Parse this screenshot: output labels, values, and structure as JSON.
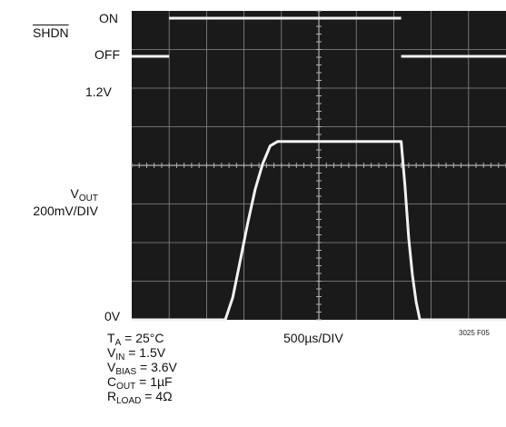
{
  "chart_data": {
    "type": "line",
    "title": "",
    "grid": true,
    "xlabel": "500µs/DIV",
    "x_divisions": 10,
    "y_divisions": 8,
    "x": [
      0,
      0.5,
      0.6,
      0.75,
      1.0,
      1.25,
      1.5,
      1.75,
      2.0,
      2.5,
      3.0,
      3.5,
      4.0,
      4.5,
      5.0
    ],
    "series": [
      {
        "name": "SHDN",
        "units": "logic",
        "labels": {
          "high": "ON",
          "low": "OFF"
        },
        "x": [
          0,
          0.5,
          0.5,
          3.6,
          3.6,
          5.0
        ],
        "values": [
          0,
          0,
          1,
          1,
          0,
          0
        ]
      },
      {
        "name": "VOUT",
        "units": "V",
        "scale": "200mV/DIV",
        "x": [
          0,
          1.25,
          1.35,
          1.45,
          1.55,
          1.65,
          1.75,
          1.85,
          1.95,
          3.6,
          3.65,
          3.7,
          3.75,
          3.8,
          3.85,
          5.0
        ],
        "values": [
          0,
          0,
          0.15,
          0.4,
          0.65,
          0.88,
          1.05,
          1.17,
          1.2,
          1.2,
          0.9,
          0.55,
          0.3,
          0.12,
          0,
          0
        ],
        "level_labels": {
          "high": "1.2V",
          "low": "0V"
        }
      }
    ]
  },
  "labels": {
    "shdn": "SHDN",
    "on": "ON",
    "off": "OFF",
    "v12": "1.2V",
    "vout": "VOUT",
    "vout_base": "V",
    "vout_sub": "OUT",
    "vscale": "200mV/DIV",
    "zero": "0V",
    "timebase": "500µs/DIV",
    "fig_id": "3025 F05"
  },
  "conditions": [
    {
      "base": "T",
      "sub": "A",
      "rest": " = 25°C"
    },
    {
      "base": "V",
      "sub": "IN",
      "rest": " = 1.5V"
    },
    {
      "base": "V",
      "sub": "BIAS",
      "rest": " = 3.6V"
    },
    {
      "base": "C",
      "sub": "OUT",
      "rest": " = 1µF"
    },
    {
      "base": "R",
      "sub": "LOAD",
      "rest": " = 4Ω"
    }
  ],
  "colors": {
    "screen": "#1a1a1a",
    "grid": "#8a8a8a",
    "trace": "#f2f2f2"
  }
}
